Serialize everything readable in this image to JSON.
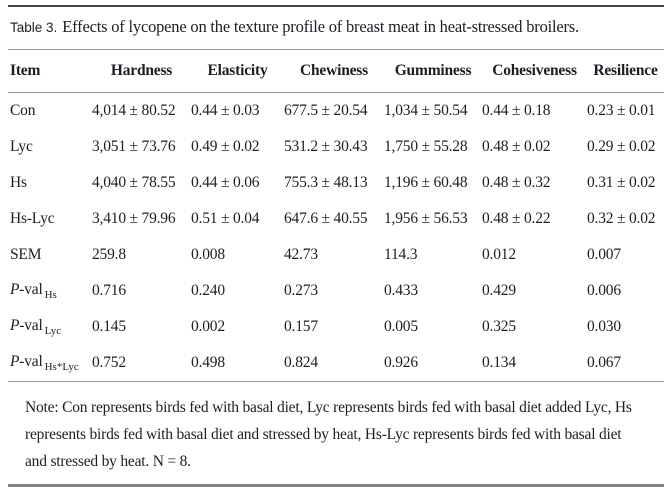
{
  "caption": {
    "label": "Table 3.",
    "text": "Effects of lycopene on the texture profile of breast meat in heat-stressed broilers."
  },
  "table": {
    "columns": [
      "Item",
      "Hardness",
      "Elasticity",
      "Chewiness",
      "Gumminess",
      "Cohesiveness",
      "Resilience"
    ],
    "rows": [
      {
        "label": "Con",
        "values": [
          "4,014 ± 80.52",
          "0.44 ± 0.03",
          "677.5 ± 20.54",
          "1,034 ± 50.54",
          "0.44 ± 0.18",
          "0.23 ± 0.01"
        ]
      },
      {
        "label": "Lyc",
        "values": [
          "3,051 ± 73.76",
          "0.49 ± 0.02",
          "531.2 ± 30.43",
          "1,750 ± 55.28",
          "0.48 ± 0.02",
          "0.29 ± 0.02"
        ]
      },
      {
        "label": "Hs",
        "values": [
          "4,040 ± 78.55",
          "0.44 ± 0.06",
          "755.3 ± 48.13",
          "1,196 ± 60.48",
          "0.48 ± 0.32",
          "0.31 ± 0.02"
        ]
      },
      {
        "label": "Hs-Lyc",
        "values": [
          "3,410 ± 79.96",
          "0.51 ± 0.04",
          "647.6 ± 40.55",
          "1,956 ± 56.53",
          "0.48 ± 0.22",
          "0.32 ± 0.02"
        ]
      },
      {
        "label": "SEM",
        "values": [
          "259.8",
          "0.008",
          "42.73",
          "114.3",
          "0.012",
          "0.007"
        ]
      },
      {
        "label_italic": "P",
        "label": "-val",
        "sub": "Hs",
        "values": [
          "0.716",
          "0.240",
          "0.273",
          "0.433",
          "0.429",
          "0.006"
        ]
      },
      {
        "label_italic": "P",
        "label": "-val",
        "sub": "Lyc",
        "values": [
          "0.145",
          "0.002",
          "0.157",
          "0.005",
          "0.325",
          "0.030"
        ]
      },
      {
        "label_italic": "P",
        "label": "-val",
        "sub": "Hs*Lyc",
        "values": [
          "0.752",
          "0.498",
          "0.824",
          "0.926",
          "0.134",
          "0.067"
        ]
      }
    ]
  },
  "note": "Note: Con represents birds fed with basal diet, Lyc represents birds fed with basal diet added Lyc, Hs represents birds fed with basal diet and stressed by heat, Hs-Lyc represents birds fed with basal diet and stressed by heat. N = 8.",
  "colors": {
    "text": "#1c1e24",
    "rule_heavy_top": "#45474c",
    "rule_thin": "#9b9da0",
    "rule_heavy_bottom": "#7f8286",
    "background": "#ffffff"
  }
}
